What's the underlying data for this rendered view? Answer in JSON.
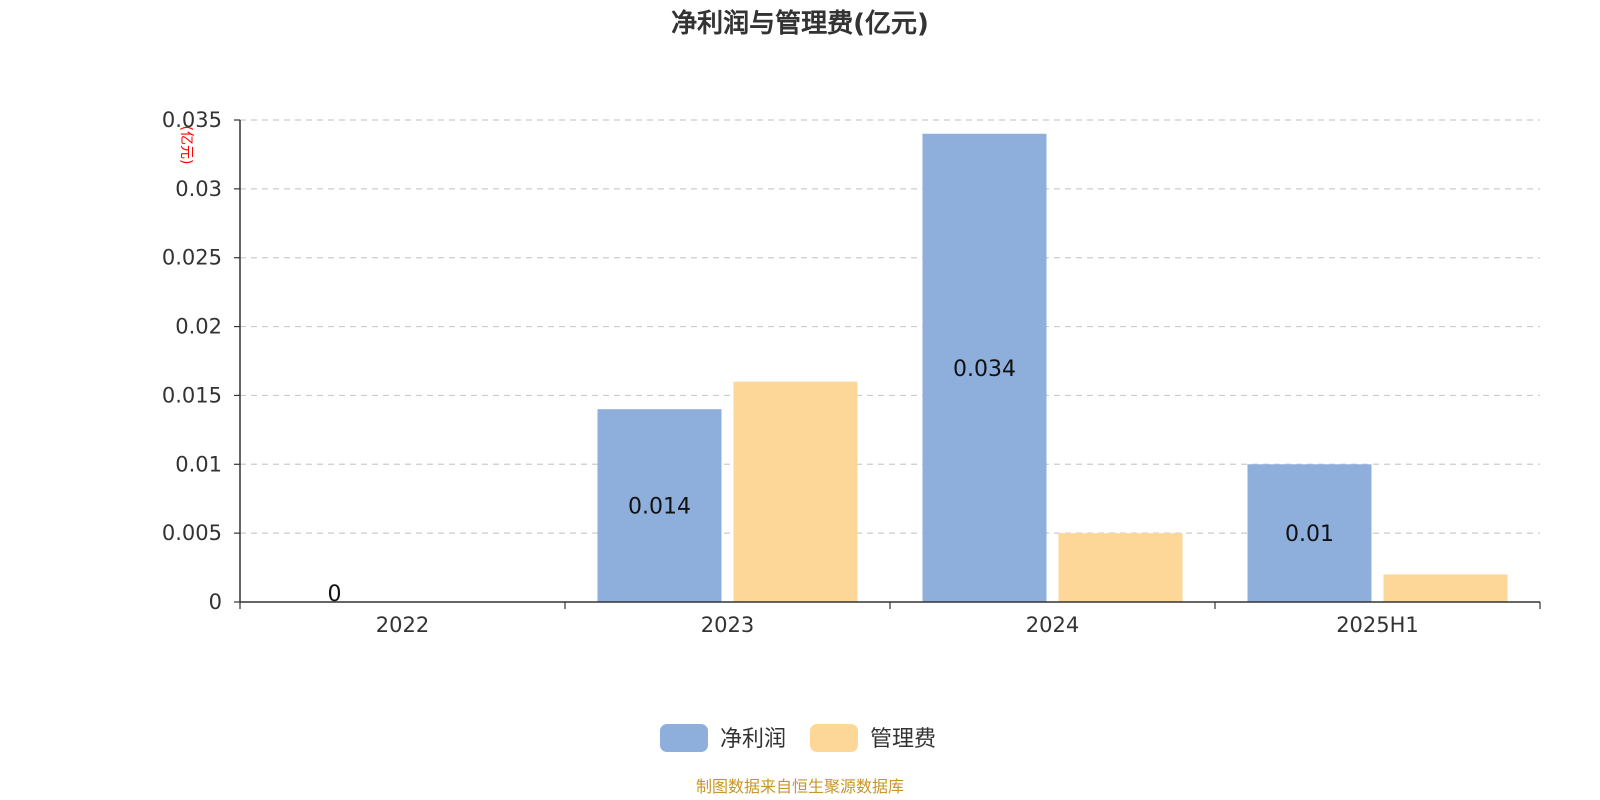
{
  "chart_data": {
    "type": "bar",
    "title": "净利润与管理费(亿元)",
    "unit_label": "(亿元)",
    "categories": [
      "2022",
      "2023",
      "2024",
      "2025H1"
    ],
    "series": [
      {
        "name": "净利润",
        "values": [
          0,
          0.014,
          0.034,
          0.01
        ],
        "color": "#8eaedb",
        "data_labels": [
          "0",
          "0.014",
          "0.034",
          "0.01"
        ]
      },
      {
        "name": "管理费",
        "values": [
          0,
          0.016,
          0.005,
          0.002
        ],
        "color": "#fdd797",
        "data_labels": null
      }
    ],
    "y_ticks": [
      "0",
      "0.005",
      "0.01",
      "0.015",
      "0.02",
      "0.025",
      "0.03",
      "0.035"
    ],
    "ylim": [
      0,
      0.035
    ],
    "grid": true,
    "legend_position": "bottom-center",
    "source": "制图数据来自恒生聚源数据库"
  }
}
